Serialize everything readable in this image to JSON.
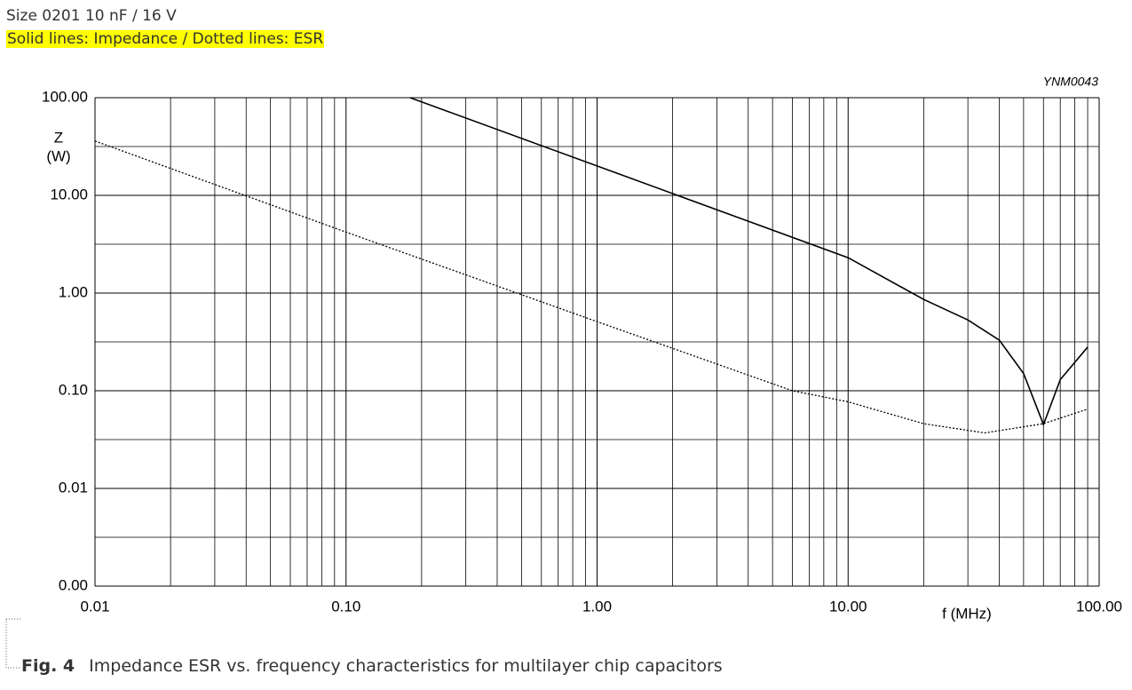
{
  "header": {
    "subtitle": "Size 0201 10 nF / 16 V",
    "note": "Solid lines: Impedance / Dotted lines: ESR"
  },
  "chart_data": {
    "type": "line",
    "annotation": "YNM0043",
    "ylabel": "Z",
    "yunit": "(W)",
    "xlabel": "f (MHz)",
    "xscale": "log",
    "yscale": "log",
    "grid": true,
    "xlim": [
      0.01,
      100
    ],
    "ylim": [
      0.001,
      100
    ],
    "xticks": [
      0.01,
      {
        "value": 0.1,
        "label": "0.10"
      },
      {
        "value": 1,
        "label": "1.00"
      },
      {
        "value": 10,
        "label": "10.00"
      },
      {
        "value": 100,
        "label": "100.00"
      }
    ],
    "yticks": [
      {
        "value": 0.001,
        "label": "0.00"
      },
      0.01,
      {
        "value": 0.1,
        "label": "0.10"
      },
      {
        "value": 1,
        "label": "1.00"
      },
      {
        "value": 10,
        "label": "10.00"
      },
      {
        "value": 100,
        "label": "100.00"
      }
    ],
    "series": [
      {
        "color": "#000000",
        "style": "solid",
        "x": [
          0.18,
          1,
          10,
          20,
          30,
          40,
          50,
          60,
          70,
          90
        ],
        "values": [
          100,
          20,
          2.3,
          0.86,
          0.53,
          0.33,
          0.15,
          0.045,
          0.13,
          0.28
        ]
      },
      {
        "color": "#000000",
        "style": "dotted",
        "x": [
          0.01,
          0.1,
          1,
          6,
          10,
          20,
          35,
          60,
          90
        ],
        "values": [
          36,
          4.2,
          0.51,
          0.1,
          0.077,
          0.046,
          0.037,
          0.046,
          0.065
        ]
      }
    ]
  },
  "caption": {
    "label": "Fig. 4",
    "text": "Impedance ESR vs. frequency characteristics for multilayer chip capacitors"
  }
}
